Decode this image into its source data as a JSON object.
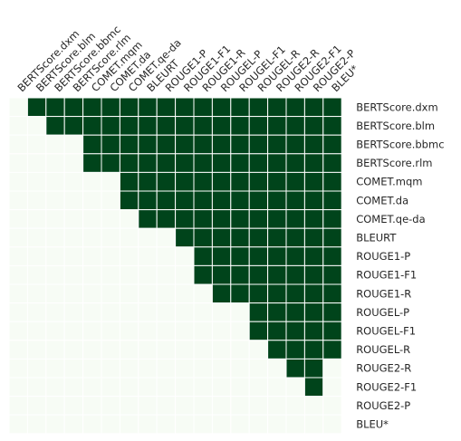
{
  "chart_data": {
    "type": "heatmap",
    "labels": [
      "BERTScore.dxm",
      "BERTScore.blm",
      "BERTScore.bbmc",
      "BERTScore.rlm",
      "COMET.mqm",
      "COMET.da",
      "COMET.qe-da",
      "BLEURT",
      "ROUGE1-P",
      "ROUGE1-F1",
      "ROUGE1-R",
      "ROUGEL-P",
      "ROUGEL-F1",
      "ROUGEL-R",
      "ROUGE2-R",
      "ROUGE2-F1",
      "ROUGE2-P",
      "BLEU*"
    ],
    "row_label_position": "right",
    "column_label_position": "top",
    "column_label_rotation_deg": -45,
    "colors": {
      "significant": "#00441b",
      "not_significant": "#f7fcf5",
      "grid": "#ffffff"
    },
    "matrix": [
      [
        0,
        1,
        1,
        1,
        1,
        1,
        1,
        1,
        1,
        1,
        1,
        1,
        1,
        1,
        1,
        1,
        1,
        1
      ],
      [
        0,
        0,
        1,
        1,
        1,
        1,
        1,
        1,
        1,
        1,
        1,
        1,
        1,
        1,
        1,
        1,
        1,
        1
      ],
      [
        0,
        0,
        0,
        0,
        1,
        1,
        1,
        1,
        1,
        1,
        1,
        1,
        1,
        1,
        1,
        1,
        1,
        1
      ],
      [
        0,
        0,
        0,
        0,
        1,
        1,
        1,
        1,
        1,
        1,
        1,
        1,
        1,
        1,
        1,
        1,
        1,
        1
      ],
      [
        0,
        0,
        0,
        0,
        0,
        0,
        1,
        1,
        1,
        1,
        1,
        1,
        1,
        1,
        1,
        1,
        1,
        1
      ],
      [
        0,
        0,
        0,
        0,
        0,
        0,
        1,
        1,
        1,
        1,
        1,
        1,
        1,
        1,
        1,
        1,
        1,
        1
      ],
      [
        0,
        0,
        0,
        0,
        0,
        0,
        0,
        1,
        1,
        1,
        1,
        1,
        1,
        1,
        1,
        1,
        1,
        1
      ],
      [
        0,
        0,
        0,
        0,
        0,
        0,
        0,
        0,
        0,
        1,
        1,
        1,
        1,
        1,
        1,
        1,
        1,
        1
      ],
      [
        0,
        0,
        0,
        0,
        0,
        0,
        0,
        0,
        0,
        0,
        1,
        1,
        1,
        1,
        1,
        1,
        1,
        1
      ],
      [
        0,
        0,
        0,
        0,
        0,
        0,
        0,
        0,
        0,
        0,
        1,
        1,
        1,
        1,
        1,
        1,
        1,
        1
      ],
      [
        0,
        0,
        0,
        0,
        0,
        0,
        0,
        0,
        0,
        0,
        0,
        1,
        1,
        1,
        1,
        1,
        1,
        1
      ],
      [
        0,
        0,
        0,
        0,
        0,
        0,
        0,
        0,
        0,
        0,
        0,
        0,
        0,
        1,
        1,
        1,
        1,
        1
      ],
      [
        0,
        0,
        0,
        0,
        0,
        0,
        0,
        0,
        0,
        0,
        0,
        0,
        0,
        1,
        1,
        1,
        1,
        1
      ],
      [
        0,
        0,
        0,
        0,
        0,
        0,
        0,
        0,
        0,
        0,
        0,
        0,
        0,
        0,
        1,
        1,
        1,
        1
      ],
      [
        0,
        0,
        0,
        0,
        0,
        0,
        0,
        0,
        0,
        0,
        0,
        0,
        0,
        0,
        0,
        1,
        1,
        0
      ],
      [
        0,
        0,
        0,
        0,
        0,
        0,
        0,
        0,
        0,
        0,
        0,
        0,
        0,
        0,
        0,
        0,
        1,
        0
      ],
      [
        0,
        0,
        0,
        0,
        0,
        0,
        0,
        0,
        0,
        0,
        0,
        0,
        0,
        0,
        0,
        0,
        0,
        0
      ],
      [
        0,
        0,
        0,
        0,
        0,
        0,
        0,
        0,
        0,
        0,
        0,
        0,
        0,
        0,
        0,
        0,
        0,
        0
      ]
    ]
  }
}
